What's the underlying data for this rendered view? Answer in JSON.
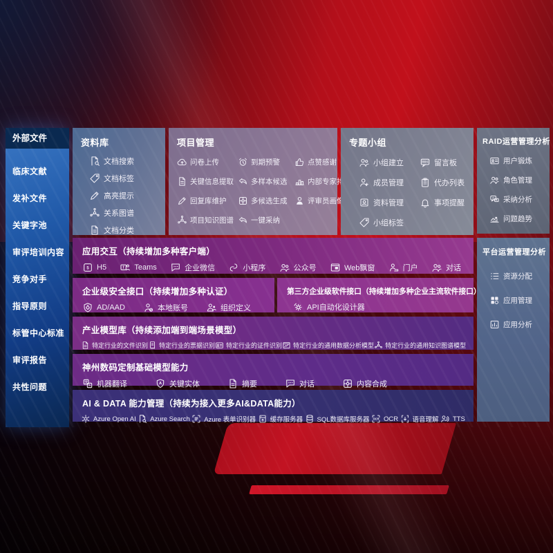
{
  "sidebar": {
    "title": "外部文件",
    "items": [
      "临床文献",
      "发补文件",
      "关键字池",
      "审评培训内容",
      "竞争对手",
      "指导原则",
      "标管中心标准",
      "审评报告",
      "共性问题"
    ]
  },
  "panels": {
    "library": {
      "title": "资料库",
      "items": [
        {
          "label": "文档搜索",
          "icon": "doc-search"
        },
        {
          "label": "文档标签",
          "icon": "tag"
        },
        {
          "label": "高亮提示",
          "icon": "highlight-pen"
        },
        {
          "label": "关系图谱",
          "icon": "knowledge-graph"
        },
        {
          "label": "文档分类",
          "icon": "document"
        }
      ]
    },
    "projects": {
      "title": "项目管理",
      "items": [
        {
          "label": "问卷上传",
          "icon": "cloud-upload"
        },
        {
          "label": "到期预警",
          "icon": "alarm-warning"
        },
        {
          "label": "点赞感谢",
          "icon": "thumbs-up"
        },
        {
          "label": "关键信息提取",
          "icon": "doc-extract"
        },
        {
          "label": "多样本候选",
          "icon": "reply-arrow"
        },
        {
          "label": "内部专家排名",
          "icon": "ranking-podium"
        },
        {
          "label": "回复库维护",
          "icon": "edit-pen"
        },
        {
          "label": "多候选生成",
          "icon": "puzzle-generate"
        },
        {
          "label": "评审员画像",
          "icon": "person-portrait"
        },
        {
          "label": "项目知识图谱",
          "icon": "knowledge-graph"
        },
        {
          "label": "一键采纳",
          "icon": "adopt-arrow"
        }
      ]
    },
    "groups": {
      "title": "专题小组",
      "items": [
        {
          "label": "小组建立",
          "icon": "people-group"
        },
        {
          "label": "留言板",
          "icon": "bbs-board"
        },
        {
          "label": "成员管理",
          "icon": "person-add"
        },
        {
          "label": "代办列表",
          "icon": "todo-clipboard"
        },
        {
          "label": "资料管理",
          "icon": "photo-album"
        },
        {
          "label": "事项提醒",
          "icon": "bell-reminder"
        },
        {
          "label": "小组标签",
          "icon": "tag"
        }
      ]
    },
    "raid": {
      "title": "RAID运营管理分析",
      "items": [
        {
          "label": "用户锻炼",
          "icon": "id-card"
        },
        {
          "label": "角色管理",
          "icon": "roles-people"
        },
        {
          "label": "采纳分析",
          "icon": "qa-analysis"
        },
        {
          "label": "问题趋势",
          "icon": "trend-chart"
        }
      ]
    },
    "platform": {
      "title": "平台运营管理分析",
      "items": [
        {
          "label": "资源分配",
          "icon": "resource-list"
        },
        {
          "label": "应用管理",
          "icon": "app-grid"
        },
        {
          "label": "应用分析",
          "icon": "chart-analysis"
        }
      ]
    }
  },
  "rows": {
    "interaction": {
      "title": "应用交互（持续增加多种客户端）",
      "items": [
        {
          "label": "H5",
          "icon": "h5-badge"
        },
        {
          "label": "Teams",
          "icon": "teams"
        },
        {
          "label": "企业微信",
          "icon": "wechat-chat"
        },
        {
          "label": "小程序",
          "icon": "miniprogram-link"
        },
        {
          "label": "公众号",
          "icon": "official-account"
        },
        {
          "label": "Web飘窗",
          "icon": "web-window"
        },
        {
          "label": "门户",
          "icon": "portal-desk"
        },
        {
          "label": "对话",
          "icon": "dialog-people"
        }
      ]
    },
    "security": {
      "title": "企业级安全接口（持续增加多种认证）",
      "items": [
        {
          "label": "AD/AAD",
          "icon": "ad-shield"
        },
        {
          "label": "本地账号",
          "icon": "local-account"
        },
        {
          "label": "组织定义",
          "icon": "org-define"
        }
      ]
    },
    "third_party": {
      "title": "第三方企业级软件接口（持续增加多种企业主流软件接口）",
      "items": [
        {
          "label": "API自动化设计器",
          "icon": "api-gear"
        }
      ]
    },
    "industry_models": {
      "title": "产业模型库（持续添加端到端场景模型）",
      "items": [
        {
          "label": "特定行业的文件识别",
          "icon": "document"
        },
        {
          "label": "特定行业的票据识别",
          "icon": "receipt"
        },
        {
          "label": "特定行业的证件识别",
          "icon": "cert-card"
        },
        {
          "label": "特定行业的通用数据分析模型",
          "icon": "data-chart-window"
        },
        {
          "label": "特定行业的通用知识图谱模型",
          "icon": "knowledge-graph"
        }
      ]
    },
    "base_models": {
      "title": "神州数码定制基础模型能力",
      "items": [
        {
          "label": "机器翻译",
          "icon": "translate"
        },
        {
          "label": "关键实体",
          "icon": "entity-shield"
        },
        {
          "label": "摘要",
          "icon": "summary-doc"
        },
        {
          "label": "对话",
          "icon": "chat-dialog"
        },
        {
          "label": "内容合成",
          "icon": "compose-puzzle"
        }
      ]
    },
    "ai_data": {
      "title": "AI & DATA 能力管理（持续为接入更多AI&DATA能力）",
      "items": [
        {
          "label": "Azure Open AI",
          "icon": "openai-flower"
        },
        {
          "label": "Azure Search",
          "icon": "azure-search"
        },
        {
          "label": "Azure 表单识别器",
          "icon": "form-recognizer"
        },
        {
          "label": "缓存服务器",
          "icon": "cache-server"
        },
        {
          "label": "SQL数据库服务器",
          "icon": "sql-database"
        },
        {
          "label": "OCR",
          "icon": "ocr-scan"
        },
        {
          "label": "语音理解",
          "icon": "speech-understand"
        },
        {
          "label": "TTS",
          "icon": "tts-voice"
        }
      ]
    }
  },
  "colors": {
    "accent_red": "#c00f19",
    "panel_purple": "#7c2c85",
    "panel_indigo": "#363074",
    "sidebar_blue": "#1c4f9a",
    "slate_panel": "#6e7485"
  }
}
